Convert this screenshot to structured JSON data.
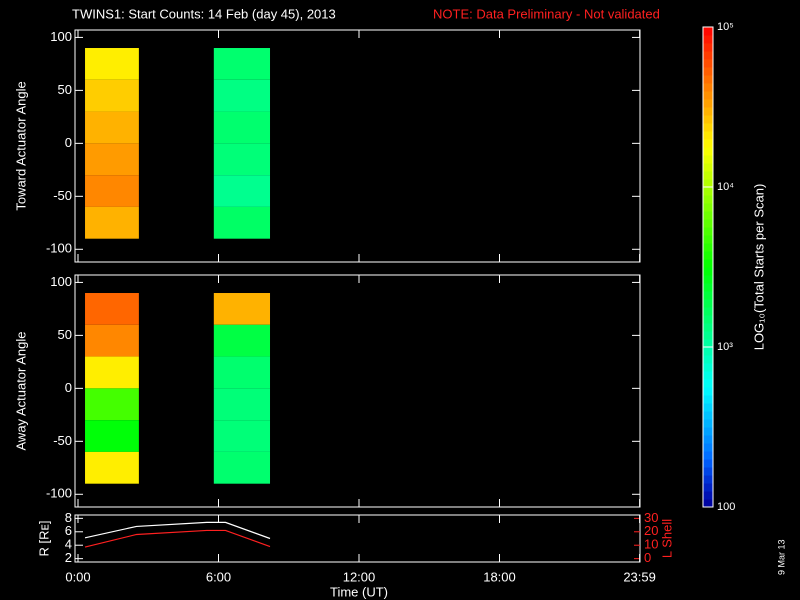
{
  "title": "TWINS1: Start Counts: 14 Feb (day  45), 2013",
  "note": "NOTE: Data Preliminary - Not validated",
  "side_label": "9 Mar 13",
  "colorbar": {
    "title": "LOG₁₀(Total Starts per Scan)",
    "log": true,
    "lim": [
      100,
      100000
    ],
    "ticks": [
      {
        "value": 100000,
        "label": "10⁵"
      },
      {
        "value": 10000,
        "label": "10⁴"
      },
      {
        "value": 1000,
        "label": "10³"
      },
      100
    ]
  },
  "chart_data": [
    {
      "type": "heatmap",
      "ylabel": "Toward Actuator Angle",
      "xlim": [
        0,
        24
      ],
      "ylim": [
        -112,
        107
      ],
      "yticks": [
        100,
        50,
        0,
        -50,
        -100
      ],
      "xticks": [
        0,
        6,
        12,
        18,
        23.983
      ],
      "cells": [
        {
          "x": [
            0.3,
            2.6
          ],
          "y": [
            60,
            90
          ],
          "value": 20000
        },
        {
          "x": [
            0.3,
            2.6
          ],
          "y": [
            30,
            60
          ],
          "value": 25000
        },
        {
          "x": [
            0.3,
            2.6
          ],
          "y": [
            0,
            30
          ],
          "value": 30000
        },
        {
          "x": [
            0.3,
            2.6
          ],
          "y": [
            -30,
            0
          ],
          "value": 35000
        },
        {
          "x": [
            0.3,
            2.6
          ],
          "y": [
            -60,
            -30
          ],
          "value": 40000
        },
        {
          "x": [
            0.3,
            2.6
          ],
          "y": [
            -90,
            -60
          ],
          "value": 30000
        },
        {
          "x": [
            5.8,
            8.2
          ],
          "y": [
            60,
            90
          ],
          "value": 1500
        },
        {
          "x": [
            5.8,
            8.2
          ],
          "y": [
            30,
            60
          ],
          "value": 1300
        },
        {
          "x": [
            5.8,
            8.2
          ],
          "y": [
            0,
            30
          ],
          "value": 1500
        },
        {
          "x": [
            5.8,
            8.2
          ],
          "y": [
            -30,
            0
          ],
          "value": 1400
        },
        {
          "x": [
            5.8,
            8.2
          ],
          "y": [
            -60,
            -30
          ],
          "value": 1200
        },
        {
          "x": [
            5.8,
            8.2
          ],
          "y": [
            -90,
            -60
          ],
          "value": 1600
        }
      ]
    },
    {
      "type": "heatmap",
      "ylabel": "Away Actuator Angle",
      "xlim": [
        0,
        24
      ],
      "ylim": [
        -112,
        107
      ],
      "yticks": [
        100,
        50,
        0,
        -50,
        -100
      ],
      "xticks": [
        0,
        6,
        12,
        18,
        23.983
      ],
      "cells": [
        {
          "x": [
            0.3,
            2.6
          ],
          "y": [
            60,
            90
          ],
          "value": 50000
        },
        {
          "x": [
            0.3,
            2.6
          ],
          "y": [
            30,
            60
          ],
          "value": 40000
        },
        {
          "x": [
            0.3,
            2.6
          ],
          "y": [
            0,
            30
          ],
          "value": 20000
        },
        {
          "x": [
            0.3,
            2.6
          ],
          "y": [
            -30,
            0
          ],
          "value": 5000
        },
        {
          "x": [
            0.3,
            2.6
          ],
          "y": [
            -60,
            -30
          ],
          "value": 3000
        },
        {
          "x": [
            0.3,
            2.6
          ],
          "y": [
            -90,
            -60
          ],
          "value": 20000
        },
        {
          "x": [
            5.8,
            8.2
          ],
          "y": [
            60,
            90
          ],
          "value": 30000
        },
        {
          "x": [
            5.8,
            8.2
          ],
          "y": [
            30,
            60
          ],
          "value": 2000
        },
        {
          "x": [
            5.8,
            8.2
          ],
          "y": [
            0,
            30
          ],
          "value": 1500
        },
        {
          "x": [
            5.8,
            8.2
          ],
          "y": [
            -30,
            0
          ],
          "value": 1400
        },
        {
          "x": [
            5.8,
            8.2
          ],
          "y": [
            -60,
            -30
          ],
          "value": 1400
        },
        {
          "x": [
            5.8,
            8.2
          ],
          "y": [
            -90,
            -60
          ],
          "value": 1500
        }
      ]
    },
    {
      "type": "line",
      "ylabel": "R [Rᴇ]",
      "y2label": "L Shell",
      "xlabel": "Time (UT)",
      "xlim": [
        0,
        24
      ],
      "ylim": [
        1.5,
        8.5
      ],
      "yticks": [
        2,
        4,
        6,
        8
      ],
      "y2lim": [
        -2.5,
        32.5
      ],
      "y2ticks": [
        0,
        10,
        20,
        30
      ],
      "xticks": [
        {
          "value": 0,
          "label": "0:00"
        },
        {
          "value": 6,
          "label": "6:00"
        },
        {
          "value": 12,
          "label": "12:00"
        },
        {
          "value": 18,
          "label": "18:00"
        },
        {
          "value": 23.983,
          "label": "23:59"
        }
      ],
      "x": [
        0.3,
        2.5,
        5.5,
        6.3,
        8.2
      ],
      "series": [
        {
          "name": "R",
          "color": "#ffffff",
          "values": [
            5.1,
            6.8,
            7.4,
            7.4,
            5.0
          ]
        },
        {
          "name": "L",
          "color": "#ff2020",
          "axis": "y2",
          "values": [
            8.6,
            18,
            21,
            21,
            9
          ]
        }
      ]
    }
  ]
}
